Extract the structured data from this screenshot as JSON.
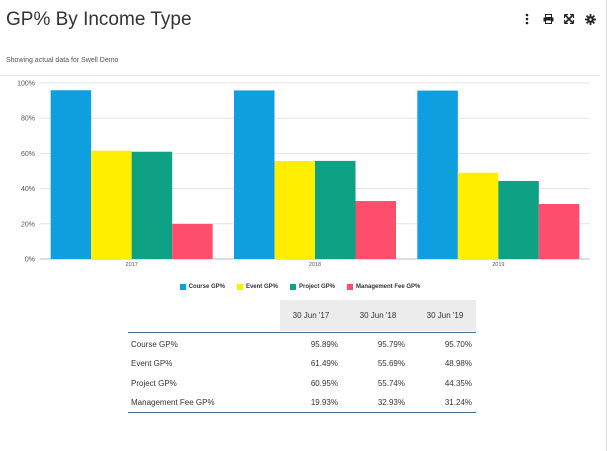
{
  "title": "GP% By Income Type",
  "subtitle": "Showing actual data for Swell Demo",
  "toolbar": [
    {
      "name": "more-options-icon"
    },
    {
      "name": "print-icon"
    },
    {
      "name": "expand-icon"
    },
    {
      "name": "settings-icon"
    }
  ],
  "colors": {
    "course": "#0f9ee0",
    "event": "#ffee00",
    "project": "#0ea183",
    "management": "#ff4d6d"
  },
  "chart_data": {
    "type": "bar",
    "categories": [
      "2017",
      "2018",
      "2019"
    ],
    "y_ticks": [
      "0%",
      "20%",
      "40%",
      "60%",
      "80%",
      "100%"
    ],
    "ylim": [
      0,
      100
    ],
    "grid": true,
    "legend_position": "bottom",
    "series": [
      {
        "name": "Course GP%",
        "color": "#0f9ee0",
        "values": [
          95.89,
          95.79,
          95.7
        ]
      },
      {
        "name": "Event GP%",
        "color": "#ffee00",
        "values": [
          61.49,
          55.69,
          48.98
        ]
      },
      {
        "name": "Project GP%",
        "color": "#0ea183",
        "values": [
          60.95,
          55.74,
          44.35
        ]
      },
      {
        "name": "Management Fee GP%",
        "color": "#ff4d6d",
        "values": [
          19.93,
          32.93,
          31.24
        ]
      }
    ]
  },
  "table": {
    "columns": [
      "30 Jun '17",
      "30 Jun '18",
      "30 Jun '19"
    ],
    "rows": [
      {
        "label": "Course GP%",
        "values": [
          "95.89%",
          "95.79%",
          "95.70%"
        ]
      },
      {
        "label": "Event GP%",
        "values": [
          "61.49%",
          "55.69%",
          "48.98%"
        ]
      },
      {
        "label": "Project GP%",
        "values": [
          "60.95%",
          "55.74%",
          "44.35%"
        ]
      },
      {
        "label": "Management Fee GP%",
        "values": [
          "19.93%",
          "32.93%",
          "31.24%"
        ]
      }
    ]
  }
}
